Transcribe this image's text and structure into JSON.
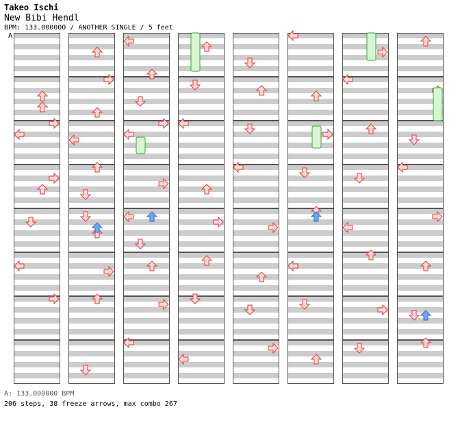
{
  "header": {
    "title": "Takeo Ischi",
    "song": "New Bibi Hendl",
    "info": "BPM: 133.000000 / ANOTHER SINGLE / 5 feet"
  },
  "section_label": "A",
  "footer": {
    "bpm_line": "A: 133.000000 BPM",
    "stats_line": "206 steps, 38 freeze arrows, max combo 267"
  },
  "colors": {
    "stripe": "#cccccc",
    "border": "#555555",
    "arrow_fill": "#ffd9d9",
    "arrow_stroke": "#e03a3a",
    "blue_fill": "#6aaaf0",
    "blue_stroke": "#2a6ad0",
    "freeze_fill": "#d7f7d0",
    "freeze_stroke": "#39a23c"
  },
  "chart": {
    "columns": 8,
    "measures_per_column": 8,
    "lanes": [
      "left",
      "down",
      "up",
      "right"
    ]
  },
  "notes": [
    [
      [
        1,
        3,
        "u"
      ],
      [
        1,
        5,
        "u"
      ],
      [
        2,
        0,
        "r"
      ],
      [
        2,
        2,
        "l"
      ],
      [
        3,
        2,
        "r"
      ],
      [
        3,
        4,
        "u"
      ],
      [
        4,
        2,
        "d"
      ],
      [
        5,
        2,
        "l"
      ],
      [
        6,
        0,
        "r"
      ]
    ],
    [
      [
        0,
        3,
        "u"
      ],
      [
        1,
        0,
        "r"
      ],
      [
        1,
        6,
        "u"
      ],
      [
        2,
        3,
        "l"
      ],
      [
        3,
        0,
        "u"
      ],
      [
        3,
        5,
        "d"
      ],
      [
        4,
        4,
        "u"
      ],
      [
        4,
        1,
        "d"
      ],
      [
        5,
        3,
        "r"
      ],
      [
        6,
        0,
        "u"
      ],
      [
        7,
        5,
        "d"
      ]
    ],
    [
      [
        0,
        1,
        "l"
      ],
      [
        0,
        7,
        "u"
      ],
      [
        1,
        4,
        "d"
      ],
      [
        2,
        2,
        "l"
      ],
      [
        2,
        0,
        "r"
      ],
      [
        3,
        3,
        "r"
      ],
      [
        4,
        1,
        "l"
      ],
      [
        4,
        6,
        "d"
      ],
      [
        5,
        2,
        "u"
      ],
      [
        6,
        1,
        "r"
      ],
      [
        7,
        0,
        "l"
      ]
    ],
    [
      [
        0,
        2,
        "u"
      ],
      [
        1,
        1,
        "d"
      ],
      [
        2,
        0,
        "l"
      ],
      [
        3,
        4,
        "u"
      ],
      [
        4,
        2,
        "r"
      ],
      [
        5,
        1,
        "u"
      ],
      [
        6,
        0,
        "d"
      ],
      [
        7,
        3,
        "l"
      ]
    ],
    [
      [
        0,
        5,
        "d"
      ],
      [
        1,
        2,
        "u"
      ],
      [
        2,
        1,
        "d"
      ],
      [
        3,
        0,
        "l"
      ],
      [
        4,
        3,
        "r"
      ],
      [
        5,
        4,
        "u"
      ],
      [
        6,
        2,
        "d"
      ],
      [
        7,
        1,
        "r"
      ]
    ],
    [
      [
        0,
        0,
        "l"
      ],
      [
        1,
        3,
        "u"
      ],
      [
        2,
        2,
        "r"
      ],
      [
        3,
        1,
        "d"
      ],
      [
        4,
        0,
        "u"
      ],
      [
        5,
        2,
        "l"
      ],
      [
        6,
        1,
        "d"
      ],
      [
        7,
        3,
        "u"
      ]
    ],
    [
      [
        0,
        3,
        "r"
      ],
      [
        1,
        0,
        "l"
      ],
      [
        2,
        1,
        "u"
      ],
      [
        3,
        2,
        "d"
      ],
      [
        4,
        3,
        "l"
      ],
      [
        5,
        0,
        "u"
      ],
      [
        6,
        2,
        "r"
      ],
      [
        7,
        1,
        "d"
      ]
    ],
    [
      [
        0,
        1,
        "u"
      ],
      [
        1,
        2,
        "r"
      ],
      [
        2,
        3,
        "d"
      ],
      [
        3,
        0,
        "l"
      ],
      [
        4,
        1,
        "r"
      ],
      [
        5,
        2,
        "u"
      ],
      [
        6,
        3,
        "d"
      ],
      [
        7,
        0,
        "u"
      ]
    ]
  ]
}
